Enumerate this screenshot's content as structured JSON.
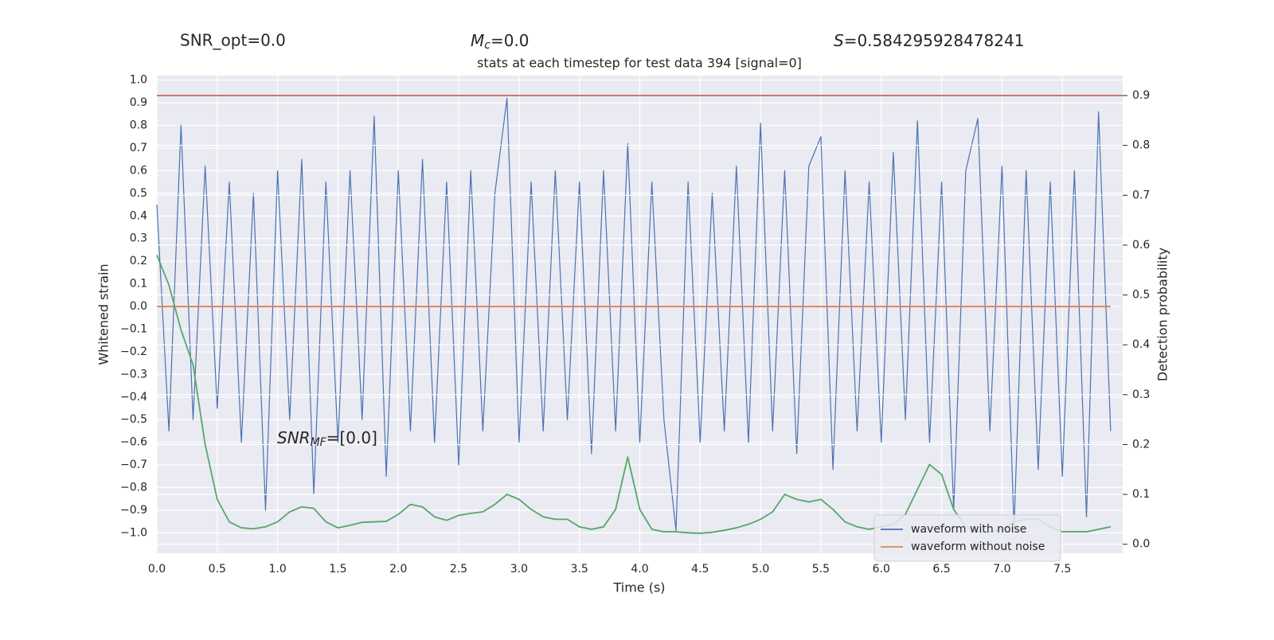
{
  "chart_data": {
    "type": "line",
    "title": "stats at each timestep for test data 394 [signal=0]",
    "header_texts": [
      "SNR_opt=0.0",
      {
        "italic": "M",
        "sub": "c",
        "rest": "=0.0"
      },
      {
        "italic": "S",
        "rest": "=0.584295928478241"
      }
    ],
    "annotation": {
      "italic": "SNR",
      "sub": "MF",
      "rest": "=[0.0]"
    },
    "x_label": "Time (s)",
    "y_label": "Whitened strain",
    "y2_label": "Detection probability",
    "x": [
      0.0,
      0.1,
      0.2,
      0.3,
      0.4,
      0.5,
      0.6,
      0.7,
      0.8,
      0.9,
      1.0,
      1.1,
      1.2,
      1.3,
      1.4,
      1.5,
      1.6,
      1.7,
      1.8,
      1.9,
      2.0,
      2.1,
      2.2,
      2.3,
      2.4,
      2.5,
      2.6,
      2.7,
      2.8,
      2.9,
      3.0,
      3.1,
      3.2,
      3.3,
      3.4,
      3.5,
      3.6,
      3.7,
      3.8,
      3.9,
      4.0,
      4.1,
      4.2,
      4.3,
      4.4,
      4.5,
      4.6,
      4.7,
      4.8,
      4.9,
      5.0,
      5.1,
      5.2,
      5.3,
      5.4,
      5.5,
      5.6,
      5.7,
      5.8,
      5.9,
      6.0,
      6.1,
      6.2,
      6.3,
      6.4,
      6.5,
      6.6,
      6.7,
      6.8,
      6.9,
      7.0,
      7.1,
      7.2,
      7.3,
      7.4,
      7.5,
      7.6,
      7.7,
      7.8,
      7.9
    ],
    "series": [
      {
        "name": "waveform with noise",
        "color": "#4c72b0",
        "values": [
          0.45,
          -0.55,
          0.8,
          -0.5,
          0.62,
          -0.45,
          0.55,
          -0.6,
          0.5,
          -0.9,
          0.6,
          -0.5,
          0.65,
          -0.83,
          0.55,
          -0.6,
          0.6,
          -0.5,
          0.84,
          -0.75,
          0.6,
          -0.55,
          0.65,
          -0.6,
          0.55,
          -0.7,
          0.6,
          -0.55,
          0.5,
          0.92,
          -0.6,
          0.55,
          -0.55,
          0.6,
          -0.5,
          0.55,
          -0.65,
          0.6,
          -0.55,
          0.72,
          -0.6,
          0.55,
          -0.5,
          -0.99,
          0.55,
          -0.6,
          0.5,
          -0.55,
          0.62,
          -0.6,
          0.81,
          -0.55,
          0.6,
          -0.65,
          0.62,
          0.75,
          -0.72,
          0.6,
          -0.55,
          0.55,
          -0.6,
          0.68,
          -0.5,
          0.82,
          -0.6,
          0.55,
          -0.9,
          0.6,
          0.83,
          -0.55,
          0.62,
          -0.98,
          0.6,
          -0.72,
          0.55,
          -0.75,
          0.6,
          -0.93,
          0.86,
          -0.55
        ]
      },
      {
        "name": "waveform without noise",
        "color": "#dd8452",
        "values": [
          0,
          0,
          0,
          0,
          0,
          0,
          0,
          0,
          0,
          0,
          0,
          0,
          0,
          0,
          0,
          0,
          0,
          0,
          0,
          0,
          0,
          0,
          0,
          0,
          0,
          0,
          0,
          0,
          0,
          0,
          0,
          0,
          0,
          0,
          0,
          0,
          0,
          0,
          0,
          0,
          0,
          0,
          0,
          0,
          0,
          0,
          0,
          0,
          0,
          0,
          0,
          0,
          0,
          0,
          0,
          0,
          0,
          0,
          0,
          0,
          0,
          0,
          0,
          0,
          0,
          0,
          0,
          0,
          0,
          0,
          0,
          0,
          0,
          0,
          0,
          0,
          0,
          0,
          0,
          0
        ]
      },
      {
        "color": "#55a868",
        "axis": "y2",
        "values": [
          0.58,
          0.52,
          0.43,
          0.36,
          0.2,
          0.09,
          0.045,
          0.033,
          0.031,
          0.035,
          0.045,
          0.065,
          0.075,
          0.072,
          0.045,
          0.033,
          0.038,
          0.044,
          0.045,
          0.046,
          0.06,
          0.08,
          0.075,
          0.055,
          0.048,
          0.058,
          0.062,
          0.065,
          0.08,
          0.1,
          0.09,
          0.07,
          0.055,
          0.05,
          0.05,
          0.035,
          0.03,
          0.035,
          0.07,
          0.175,
          0.07,
          0.03,
          0.025,
          0.025,
          0.023,
          0.022,
          0.024,
          0.028,
          0.033,
          0.04,
          0.05,
          0.065,
          0.1,
          0.09,
          0.085,
          0.09,
          0.07,
          0.045,
          0.035,
          0.03,
          0.035,
          0.04,
          0.06,
          0.11,
          0.16,
          0.14,
          0.07,
          0.035,
          0.025,
          0.025,
          0.03,
          0.045,
          0.05,
          0.05,
          0.035,
          0.025,
          0.025,
          0.025,
          0.03,
          0.035
        ]
      }
    ],
    "hlines": [
      {
        "value": 0.9,
        "axis": "y2",
        "color": "#c44e52"
      }
    ],
    "xlim": [
      0,
      8.0
    ],
    "ylim": [
      -1.09,
      1.02
    ],
    "y2lim": [
      -0.018,
      0.94
    ],
    "xticks": [
      {
        "value": 0,
        "label": "0.0"
      },
      0.5,
      {
        "value": 1,
        "label": "1.0"
      },
      1.5,
      {
        "value": 2,
        "label": "2.0"
      },
      2.5,
      {
        "value": 3,
        "label": "3.0"
      },
      3.5,
      {
        "value": 4,
        "label": "4.0"
      },
      4.5,
      {
        "value": 5,
        "label": "5.0"
      },
      5.5,
      {
        "value": 6,
        "label": "6.0"
      },
      6.5,
      {
        "value": 7,
        "label": "7.0"
      },
      7.5
    ],
    "yticks": [
      {
        "value": -1,
        "label": "−1.0"
      },
      {
        "value": -0.9,
        "label": "−0.9"
      },
      {
        "value": -0.8,
        "label": "−0.8"
      },
      {
        "value": -0.7,
        "label": "−0.7"
      },
      {
        "value": -0.6,
        "label": "−0.6"
      },
      {
        "value": -0.5,
        "label": "−0.5"
      },
      {
        "value": -0.4,
        "label": "−0.4"
      },
      {
        "value": -0.3,
        "label": "−0.3"
      },
      {
        "value": -0.2,
        "label": "−0.2"
      },
      {
        "value": -0.1,
        "label": "−0.1"
      },
      {
        "value": 0,
        "label": "0.0"
      },
      0.1,
      0.2,
      0.3,
      0.4,
      0.5,
      0.6,
      0.7,
      0.8,
      0.9,
      {
        "value": 1,
        "label": "1.0"
      }
    ],
    "y2ticks": [
      {
        "value": 0,
        "label": "0.0"
      },
      0.1,
      0.2,
      0.3,
      0.4,
      0.5,
      0.6,
      0.7,
      0.8,
      0.9
    ],
    "grid": true,
    "legend_position": "lower right"
  }
}
